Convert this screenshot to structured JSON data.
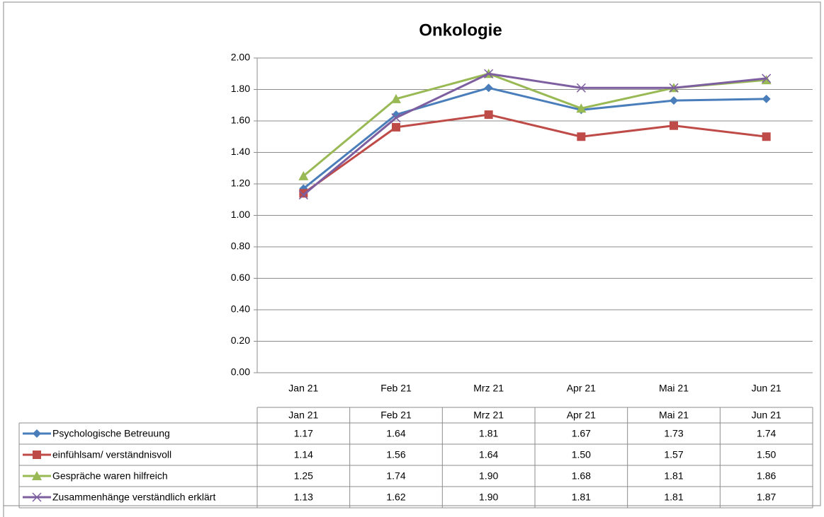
{
  "chart_data": {
    "type": "line",
    "title": "Onkologie",
    "categories": [
      "Jan 21",
      "Feb 21",
      "Mrz 21",
      "Apr 21",
      "Mai 21",
      "Jun 21"
    ],
    "series": [
      {
        "name": "Psychologische  Betreuung",
        "color": "#4a7ebb",
        "marker": "diamond",
        "values": [
          1.17,
          1.64,
          1.81,
          1.67,
          1.73,
          1.74
        ],
        "value_labels": [
          "1.17",
          "1.64",
          "1.81",
          "1.67",
          "1.73",
          "1.74"
        ]
      },
      {
        "name": "einfühlsam/ verständnisvoll",
        "color": "#be4b48",
        "marker": "square",
        "values": [
          1.14,
          1.56,
          1.64,
          1.5,
          1.57,
          1.5
        ],
        "value_labels": [
          "1.14",
          "1.56",
          "1.64",
          "1.50",
          "1.57",
          "1.50"
        ]
      },
      {
        "name": "Gespräche waren hilfreich",
        "color": "#98b954",
        "marker": "triangle",
        "values": [
          1.25,
          1.74,
          1.9,
          1.68,
          1.81,
          1.86
        ],
        "value_labels": [
          "1.25",
          "1.74",
          "1.90",
          "1.68",
          "1.81",
          "1.86"
        ]
      },
      {
        "name": "Zusammenhänge verständlich erklärt",
        "color": "#7d5fa0",
        "marker": "x",
        "values": [
          1.13,
          1.62,
          1.9,
          1.81,
          1.81,
          1.87
        ],
        "value_labels": [
          "1.13",
          "1.62",
          "1.90",
          "1.81",
          "1.81",
          "1.87"
        ]
      }
    ],
    "ylim": [
      0,
      2
    ],
    "yticks": [
      {
        "value": 0,
        "label": "0.00"
      },
      {
        "value": 0.2,
        "label": "0.20"
      },
      {
        "value": 0.4,
        "label": "0.40"
      },
      {
        "value": 0.6,
        "label": "0.60"
      },
      {
        "value": 0.8,
        "label": "0.80"
      },
      {
        "value": 1,
        "label": "1.00"
      },
      {
        "value": 1.2,
        "label": "1.20"
      },
      {
        "value": 1.4,
        "label": "1.40"
      },
      {
        "value": 1.6,
        "label": "1.60"
      },
      {
        "value": 1.8,
        "label": "1.80"
      },
      {
        "value": 2,
        "label": "2.00"
      }
    ],
    "grid": true,
    "data_table": true
  }
}
